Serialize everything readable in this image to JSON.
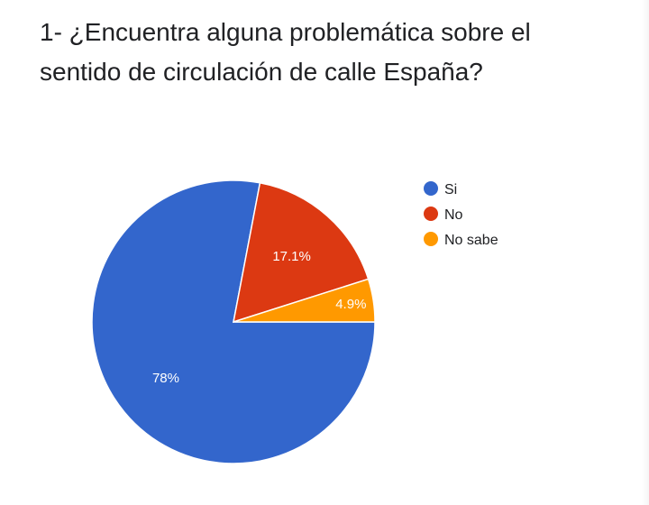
{
  "question": {
    "title": "1- ¿Encuentra alguna problemática sobre el sentido de circulación de calle España?"
  },
  "chart_data": {
    "type": "pie",
    "categories": [
      "Si",
      "No",
      "No sabe"
    ],
    "values": [
      78,
      17.1,
      4.9
    ],
    "value_labels": [
      "78%",
      "17.1%",
      "4.9%"
    ],
    "colors": [
      "#3366cc",
      "#dc3912",
      "#ff9900"
    ],
    "legend_position": "right"
  }
}
